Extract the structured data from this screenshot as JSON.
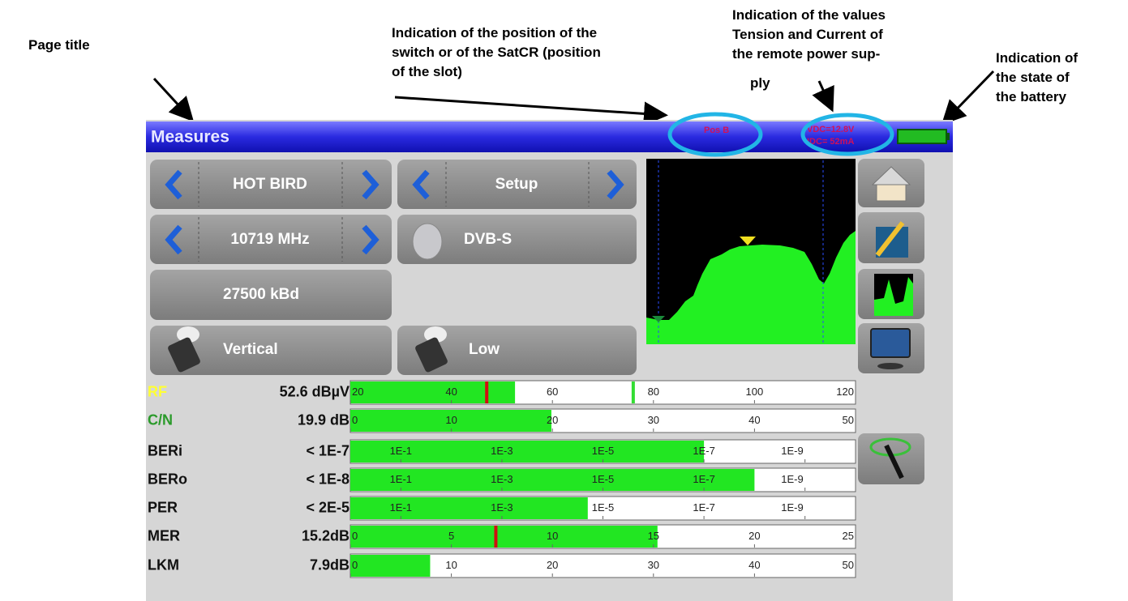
{
  "annotations": {
    "page_title": [
      "Page title"
    ],
    "switch_position": [
      "Indication of the position of the",
      "switch or of the SatCR (position",
      "of the slot)"
    ],
    "remote_power": [
      "Indication of the values",
      "Tension and Current of",
      "the remote power sup-",
      "ply"
    ],
    "battery": [
      "Indication of",
      "the state of",
      "the battery"
    ]
  },
  "header": {
    "title": "Measures",
    "position": "Pos B",
    "power": [
      "VDC=12.8V",
      "IDC= 52mA"
    ]
  },
  "controls": {
    "satellite": "HOT BIRD",
    "mode": "Setup",
    "frequency": "10719 MHz",
    "standard": "DVB-S",
    "symbol_rate": "27500 kBd",
    "polarization": "Vertical",
    "band": "Low"
  },
  "measures": [
    {
      "name": "RF",
      "color": "#ffff33",
      "reading": "52.6 dBµV",
      "range": [
        20,
        120
      ],
      "ticks": [
        20,
        40,
        60,
        80,
        100,
        120
      ],
      "level": 52.6,
      "markers": [
        {
          "value": 47,
          "color": "#d01010"
        },
        {
          "value": 76,
          "color": "#33dd33"
        }
      ]
    },
    {
      "name": "C/N",
      "color": "#2a9a2a",
      "reading": "19.9 dB",
      "range": [
        0,
        50
      ],
      "ticks": [
        0,
        10,
        20,
        30,
        40,
        50
      ],
      "level": 19.9
    },
    {
      "name": "BERi",
      "color": "#111111",
      "reading": "< 1E-7",
      "range": [
        0,
        -10
      ],
      "ticks": [
        {
          "value": -1,
          "label": "1E-1"
        },
        {
          "value": -3,
          "label": "1E-3"
        },
        {
          "value": -5,
          "label": "1E-5"
        },
        {
          "value": -7,
          "label": "1E-7"
        },
        {
          "value": -9,
          "label": "1E-9"
        }
      ],
      "level": -7
    },
    {
      "name": "BERo",
      "color": "#111111",
      "reading": "< 1E-8",
      "range": [
        0,
        -10
      ],
      "ticks": [
        {
          "value": -1,
          "label": "1E-1"
        },
        {
          "value": -3,
          "label": "1E-3"
        },
        {
          "value": -5,
          "label": "1E-5"
        },
        {
          "value": -7,
          "label": "1E-7"
        },
        {
          "value": -9,
          "label": "1E-9"
        }
      ],
      "level": -8
    },
    {
      "name": "PER",
      "color": "#111111",
      "reading": "< 2E-5",
      "range": [
        0,
        -10
      ],
      "ticks": [
        {
          "value": -1,
          "label": "1E-1"
        },
        {
          "value": -3,
          "label": "1E-3"
        },
        {
          "value": -5,
          "label": "1E-5"
        },
        {
          "value": -7,
          "label": "1E-7"
        },
        {
          "value": -9,
          "label": "1E-9"
        }
      ],
      "level": -4.7
    },
    {
      "name": "MER",
      "color": "#111111",
      "reading": "15.2dB",
      "range": [
        0,
        25
      ],
      "ticks": [
        0,
        5,
        10,
        15,
        20,
        25
      ],
      "level": 15.2,
      "markers": [
        {
          "value": 7.2,
          "color": "#d01010"
        }
      ]
    },
    {
      "name": "LKM",
      "color": "#111111",
      "reading": "7.9dB",
      "range": [
        0,
        50
      ],
      "ticks": [
        0,
        10,
        20,
        30,
        40,
        50
      ],
      "level": 7.9
    }
  ]
}
